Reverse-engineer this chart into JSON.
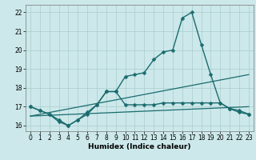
{
  "xlabel": "Humidex (Indice chaleur)",
  "background_color": "#cce8ea",
  "grid_color": "#aaccce",
  "line_color": "#1a6b6e",
  "xlim": [
    -0.5,
    23.5
  ],
  "ylim": [
    15.7,
    22.4
  ],
  "yticks": [
    16,
    17,
    18,
    19,
    20,
    21,
    22
  ],
  "xticks": [
    0,
    1,
    2,
    3,
    4,
    5,
    6,
    7,
    8,
    9,
    10,
    11,
    12,
    13,
    14,
    15,
    16,
    17,
    18,
    19,
    20,
    21,
    22,
    23
  ],
  "series": [
    {
      "x": [
        0,
        1,
        2,
        3,
        4,
        5,
        6,
        7,
        8,
        9,
        10,
        11,
        12,
        13,
        14,
        15,
        16,
        17,
        18,
        19,
        20,
        21,
        22,
        23
      ],
      "y": [
        17.0,
        16.8,
        16.6,
        16.3,
        16.0,
        16.3,
        16.7,
        17.1,
        17.8,
        17.8,
        18.6,
        18.7,
        18.8,
        19.5,
        19.9,
        20.0,
        21.7,
        22.0,
        20.3,
        18.7,
        17.2,
        16.9,
        16.7,
        16.6
      ],
      "marker": "D",
      "markersize": 2.5,
      "linewidth": 1.0,
      "has_marker": true
    },
    {
      "x": [
        0,
        1,
        2,
        3,
        4,
        5,
        6,
        7,
        8,
        9,
        10,
        11,
        12,
        13,
        14,
        15,
        16,
        17,
        18,
        19,
        20,
        21,
        22,
        23
      ],
      "y": [
        17.0,
        16.8,
        16.6,
        16.2,
        16.0,
        16.3,
        16.6,
        17.1,
        17.8,
        17.8,
        17.1,
        17.1,
        17.1,
        17.1,
        17.2,
        17.2,
        17.2,
        17.2,
        17.2,
        17.2,
        17.2,
        16.9,
        16.8,
        16.6
      ],
      "marker": "D",
      "markersize": 2.5,
      "linewidth": 1.0,
      "has_marker": true
    },
    {
      "x": [
        0,
        23
      ],
      "y": [
        16.5,
        18.7
      ],
      "marker": null,
      "markersize": 0,
      "linewidth": 0.9,
      "has_marker": false
    },
    {
      "x": [
        0,
        23
      ],
      "y": [
        16.5,
        17.0
      ],
      "marker": null,
      "markersize": 0,
      "linewidth": 0.9,
      "has_marker": false
    }
  ]
}
